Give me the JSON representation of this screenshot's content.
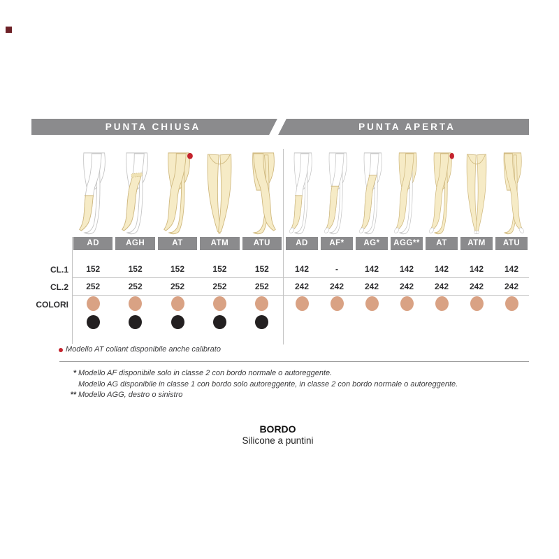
{
  "header": {
    "left": "PUNTA CHIUSA",
    "right": "PUNTA APERTA"
  },
  "row_labels": {
    "cl1": "CL.1",
    "cl2": "CL.2",
    "colori": "COLORI"
  },
  "sections": [
    {
      "name": "punta-chiusa",
      "models": [
        {
          "code": "AD",
          "figure": "knee-high",
          "open_toe": false,
          "red_dot": false,
          "cl1": "152",
          "cl2": "252",
          "dots": [
            "beige",
            "black"
          ]
        },
        {
          "code": "AGH",
          "figure": "thigh-high-band",
          "open_toe": false,
          "red_dot": false,
          "cl1": "152",
          "cl2": "252",
          "dots": [
            "beige",
            "black"
          ]
        },
        {
          "code": "AT",
          "figure": "tights",
          "open_toe": false,
          "red_dot": true,
          "cl1": "152",
          "cl2": "252",
          "dots": [
            "beige",
            "black"
          ]
        },
        {
          "code": "ATM",
          "figure": "tights-front",
          "open_toe": false,
          "red_dot": false,
          "cl1": "152",
          "cl2": "252",
          "dots": [
            "beige",
            "black"
          ]
        },
        {
          "code": "ATU",
          "figure": "tights-crossed",
          "open_toe": false,
          "red_dot": false,
          "cl1": "152",
          "cl2": "252",
          "dots": [
            "beige",
            "black"
          ]
        }
      ]
    },
    {
      "name": "punta-aperta",
      "models": [
        {
          "code": "AD",
          "figure": "knee-high",
          "open_toe": true,
          "red_dot": false,
          "cl1": "142",
          "cl2": "242",
          "dots": [
            "beige"
          ]
        },
        {
          "code": "AF*",
          "figure": "knee-high-tall",
          "open_toe": true,
          "red_dot": false,
          "cl1": "-",
          "cl2": "242",
          "dots": [
            "beige"
          ]
        },
        {
          "code": "AG*",
          "figure": "thigh-high",
          "open_toe": true,
          "red_dot": false,
          "cl1": "142",
          "cl2": "242",
          "dots": [
            "beige"
          ]
        },
        {
          "code": "AGG**",
          "figure": "monocollant",
          "open_toe": true,
          "red_dot": false,
          "cl1": "142",
          "cl2": "242",
          "dots": [
            "beige"
          ]
        },
        {
          "code": "AT",
          "figure": "tights",
          "open_toe": true,
          "red_dot": true,
          "cl1": "142",
          "cl2": "242",
          "dots": [
            "beige"
          ]
        },
        {
          "code": "ATM",
          "figure": "tights-front",
          "open_toe": true,
          "red_dot": false,
          "cl1": "142",
          "cl2": "242",
          "dots": [
            "beige"
          ]
        },
        {
          "code": "ATU",
          "figure": "tights-crossed",
          "open_toe": true,
          "red_dot": false,
          "cl1": "142",
          "cl2": "242",
          "dots": [
            "beige"
          ]
        }
      ]
    }
  ],
  "footnote": {
    "text": "Modello AT collant disponibile anche calibrato"
  },
  "notes": [
    {
      "marker": "*",
      "text": "Modello AF disponibile solo in classe 2 con bordo normale o autoreggente."
    },
    {
      "marker": "",
      "text": "Modello AG disponibile in classe 1 con bordo solo autoreggente, in classe 2 con bordo normale o autoreggente."
    },
    {
      "marker": "**",
      "text": "Modello AGG, destro o sinistro"
    }
  ],
  "bordo": {
    "title": "BORDO",
    "subtitle": "Silicone a puntini"
  },
  "colors": {
    "bar_gray": "#8b8b8d",
    "text_dark": "#2e2e30",
    "line_light": "#c3c3c3",
    "line_mid": "#9a9a9a",
    "beige": "#f6ebc6",
    "beige_outline": "#cfb87e",
    "gray_outline": "#c4c4c4",
    "salmon": "#d9a284",
    "black_dot": "#232021",
    "red": "#c4232d",
    "brand_mark": "#6d2127"
  }
}
